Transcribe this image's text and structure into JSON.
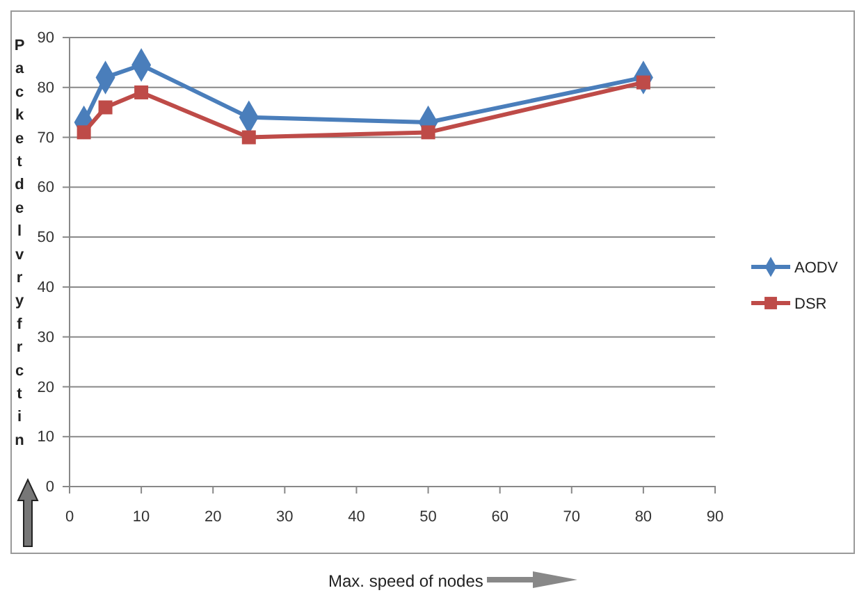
{
  "chart_data": {
    "type": "line",
    "xlabel": "Max. speed of nodes",
    "ylabel": "Packetdelvryfrctin",
    "xlim": [
      0,
      90
    ],
    "xticks": [
      0,
      10,
      20,
      30,
      40,
      50,
      60,
      70,
      80,
      90
    ],
    "ylim": [
      0,
      90
    ],
    "yticks": [
      0,
      10,
      20,
      30,
      40,
      50,
      60,
      70,
      80,
      90
    ],
    "grid": "y",
    "legend": "right",
    "series": [
      {
        "name": "AODV",
        "color": "#4a7ebb",
        "marker": "diamond",
        "x": [
          2,
          5,
          10,
          25,
          50,
          80
        ],
        "values": [
          73,
          82,
          84.5,
          74,
          73,
          82
        ]
      },
      {
        "name": "DSR",
        "color": "#be4b48",
        "marker": "square",
        "x": [
          2,
          5,
          10,
          25,
          50,
          80
        ],
        "values": [
          71,
          76,
          79,
          70,
          71,
          81
        ]
      }
    ]
  }
}
